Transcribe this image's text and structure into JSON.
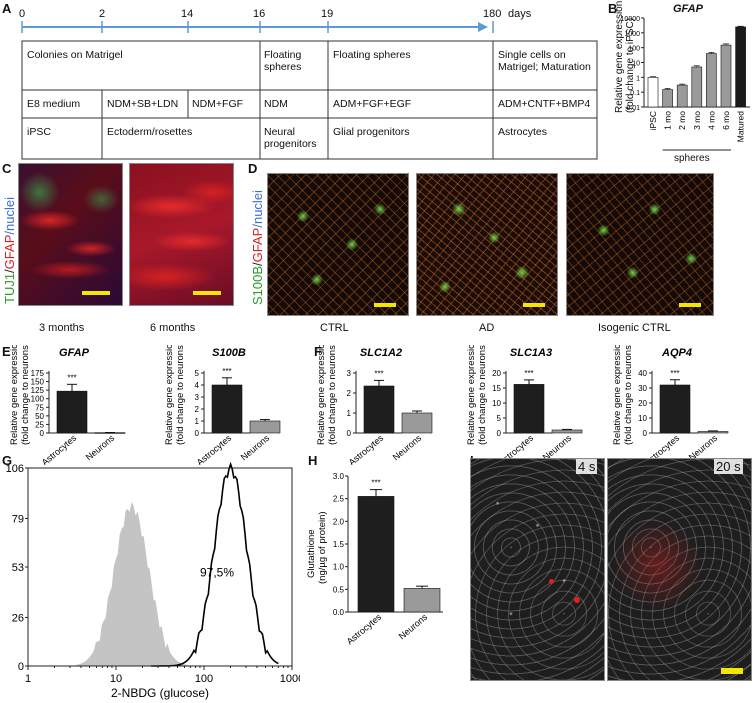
{
  "panels": {
    "A": "A",
    "B": "B",
    "C": "C",
    "D": "D",
    "E": "E",
    "F": "F",
    "G": "G",
    "H": "H",
    "I": "I"
  },
  "timeline": {
    "ticks": [
      "0",
      "2",
      "14",
      "16",
      "19",
      "180"
    ],
    "unit": "days",
    "rows": [
      [
        "Colonies on Matrigel",
        "",
        "",
        "Floating spheres",
        "Floating spheres",
        "Single cells on Matrigel; Maturation"
      ],
      [
        "E8 medium",
        "NDM+SB+LDN",
        "NDM+FGF",
        "NDM",
        "ADM+FGF+EGF",
        "ADM+CNTF+BMP4"
      ],
      [
        "iPSC",
        "Ectoderm/rosettes",
        "",
        "Neural progenitors",
        "Glial progenitors",
        "Astrocytes"
      ]
    ]
  },
  "panelB": {
    "title": "GFAP",
    "ylabel1": "Relative gene expression",
    "ylabel2": "(fold change to iPSC)",
    "yticks": [
      "10000",
      "1000",
      "100",
      "10",
      "1",
      "0.1",
      "0.01"
    ],
    "spheres_label": "spheres",
    "chart_data": {
      "type": "bar",
      "title": "GFAP",
      "ylabel": "Relative gene expression (fold change to iPSC)",
      "yscale": "log",
      "ylim": [
        0.01,
        10000
      ],
      "categories": [
        "iPSC",
        "1 mo",
        "2 mo",
        "3 mo",
        "4 mo",
        "6 mo",
        "Matured"
      ],
      "values": [
        1,
        0.15,
        0.3,
        5,
        40,
        150,
        2500
      ],
      "errors": [
        0.1,
        0.03,
        0.05,
        1,
        8,
        30,
        300
      ],
      "colors": [
        "#ffffff",
        "#9a9a9a",
        "#9a9a9a",
        "#9a9a9a",
        "#9a9a9a",
        "#9a9a9a",
        "#1a1a1a"
      ]
    }
  },
  "panelC": {
    "legend_parts": [
      "TUJ1",
      "/",
      "GFAP",
      "/nuclei"
    ],
    "captions": [
      "3 months",
      "6 months"
    ]
  },
  "panelD": {
    "legend_parts": [
      "S100B",
      "/",
      "GFAP",
      "/nuclei"
    ],
    "captions": [
      "CTRL",
      "AD",
      "Isogenic CTRL"
    ]
  },
  "panelE": {
    "ylabel1": "Relative gene expression",
    "ylabel2": "(fold change to neurons)",
    "categories": [
      "Astrocytes",
      "Neurons"
    ],
    "stars": "***",
    "charts": [
      {
        "title": "GFAP",
        "yticks": [
          "0",
          "25",
          "50",
          "75",
          "100",
          "125",
          "150",
          "175"
        ]
      },
      {
        "title": "S100B",
        "yticks": [
          "0",
          "1",
          "2",
          "3",
          "4",
          "5"
        ]
      }
    ],
    "chart_data": [
      {
        "type": "bar",
        "title": "GFAP",
        "categories": [
          "Astrocytes",
          "Neurons"
        ],
        "values": [
          122,
          1
        ],
        "errors": [
          20,
          0.5
        ],
        "ylim": [
          0,
          175
        ],
        "ylabel": "Relative gene expression (fold change to neurons)"
      },
      {
        "type": "bar",
        "title": "S100B",
        "categories": [
          "Astrocytes",
          "Neurons"
        ],
        "values": [
          4.0,
          1.0
        ],
        "errors": [
          0.6,
          0.12
        ],
        "ylim": [
          0,
          5
        ],
        "ylabel": "Relative gene expression (fold change to neurons)"
      }
    ]
  },
  "panelF": {
    "ylabel1": "Relative gene expression",
    "ylabel2": "(fold change to neurons)",
    "categories": [
      "Astrocytes",
      "Neurons"
    ],
    "stars": "***",
    "charts": [
      {
        "title": "SLC1A2",
        "yticks": [
          "0",
          "1",
          "2",
          "3"
        ]
      },
      {
        "title": "SLC1A3",
        "yticks": [
          "0",
          "5",
          "10",
          "15",
          "20"
        ]
      },
      {
        "title": "AQP4",
        "yticks": [
          "0",
          "10",
          "20",
          "30",
          "40"
        ]
      }
    ],
    "chart_data": [
      {
        "type": "bar",
        "title": "SLC1A2",
        "categories": [
          "Astrocytes",
          "Neurons"
        ],
        "values": [
          2.35,
          1.0
        ],
        "errors": [
          0.28,
          0.1
        ],
        "ylim": [
          0,
          3
        ],
        "ylabel": "Relative gene expression (fold change to neurons)"
      },
      {
        "type": "bar",
        "title": "SLC1A3",
        "categories": [
          "Astrocytes",
          "Neurons"
        ],
        "values": [
          16.2,
          1.0
        ],
        "errors": [
          1.5,
          0.2
        ],
        "ylim": [
          0,
          20
        ],
        "ylabel": "Relative gene expression (fold change to neurons)"
      },
      {
        "type": "bar",
        "title": "AQP4",
        "categories": [
          "Astrocytes",
          "Neurons"
        ],
        "values": [
          32,
          1.0
        ],
        "errors": [
          3.5,
          0.4
        ],
        "ylim": [
          0,
          40
        ],
        "ylabel": "Relative gene expression (fold change to neurons)"
      }
    ]
  },
  "panelG": {
    "xlabel": "2-NBDG (glucose)",
    "xticks": [
      "1",
      "10",
      "100",
      "1000"
    ],
    "yticks": [
      "0",
      "26",
      "53",
      "79",
      "106"
    ],
    "annotation": "97,5%",
    "chart_data": {
      "type": "area",
      "xlabel": "2-NBDG (glucose)",
      "xscale": "log",
      "xlim": [
        1,
        1000
      ],
      "ylim": [
        0,
        106
      ],
      "series": [
        {
          "peak_x": 15,
          "peak_y": 86,
          "color": "#c4c4c4"
        },
        {
          "peak_x": 200,
          "peak_y": 106,
          "color": "#000000"
        }
      ],
      "annotation": "97,5%"
    }
  },
  "panelH": {
    "ylabel1": "Glutathione",
    "ylabel2": "(ng/µg of protein)",
    "yticks": [
      "0.0",
      "0.5",
      "1.0",
      "1.5",
      "2.0",
      "2.5",
      "3.0"
    ],
    "categories": [
      "Astrocytes",
      "Neurons"
    ],
    "stars": "***",
    "chart_data": {
      "type": "bar",
      "categories": [
        "Astrocytes",
        "Neurons"
      ],
      "values": [
        2.55,
        0.52
      ],
      "errors": [
        0.15,
        0.05
      ],
      "ylim": [
        0,
        3.0
      ],
      "ylabel": "Glutathione (ng/µg of protein)"
    }
  },
  "panelI": {
    "times": [
      "4 s",
      "20 s"
    ]
  },
  "colors": {
    "timeline_blue": "#5b9bd5",
    "bar_dark": "#1e1e1e",
    "bar_grey": "#9a9a9a",
    "scale_yellow": "#f3e600",
    "green": "#2a9d2a",
    "red": "#d62020",
    "blue": "#3a6fd8"
  }
}
